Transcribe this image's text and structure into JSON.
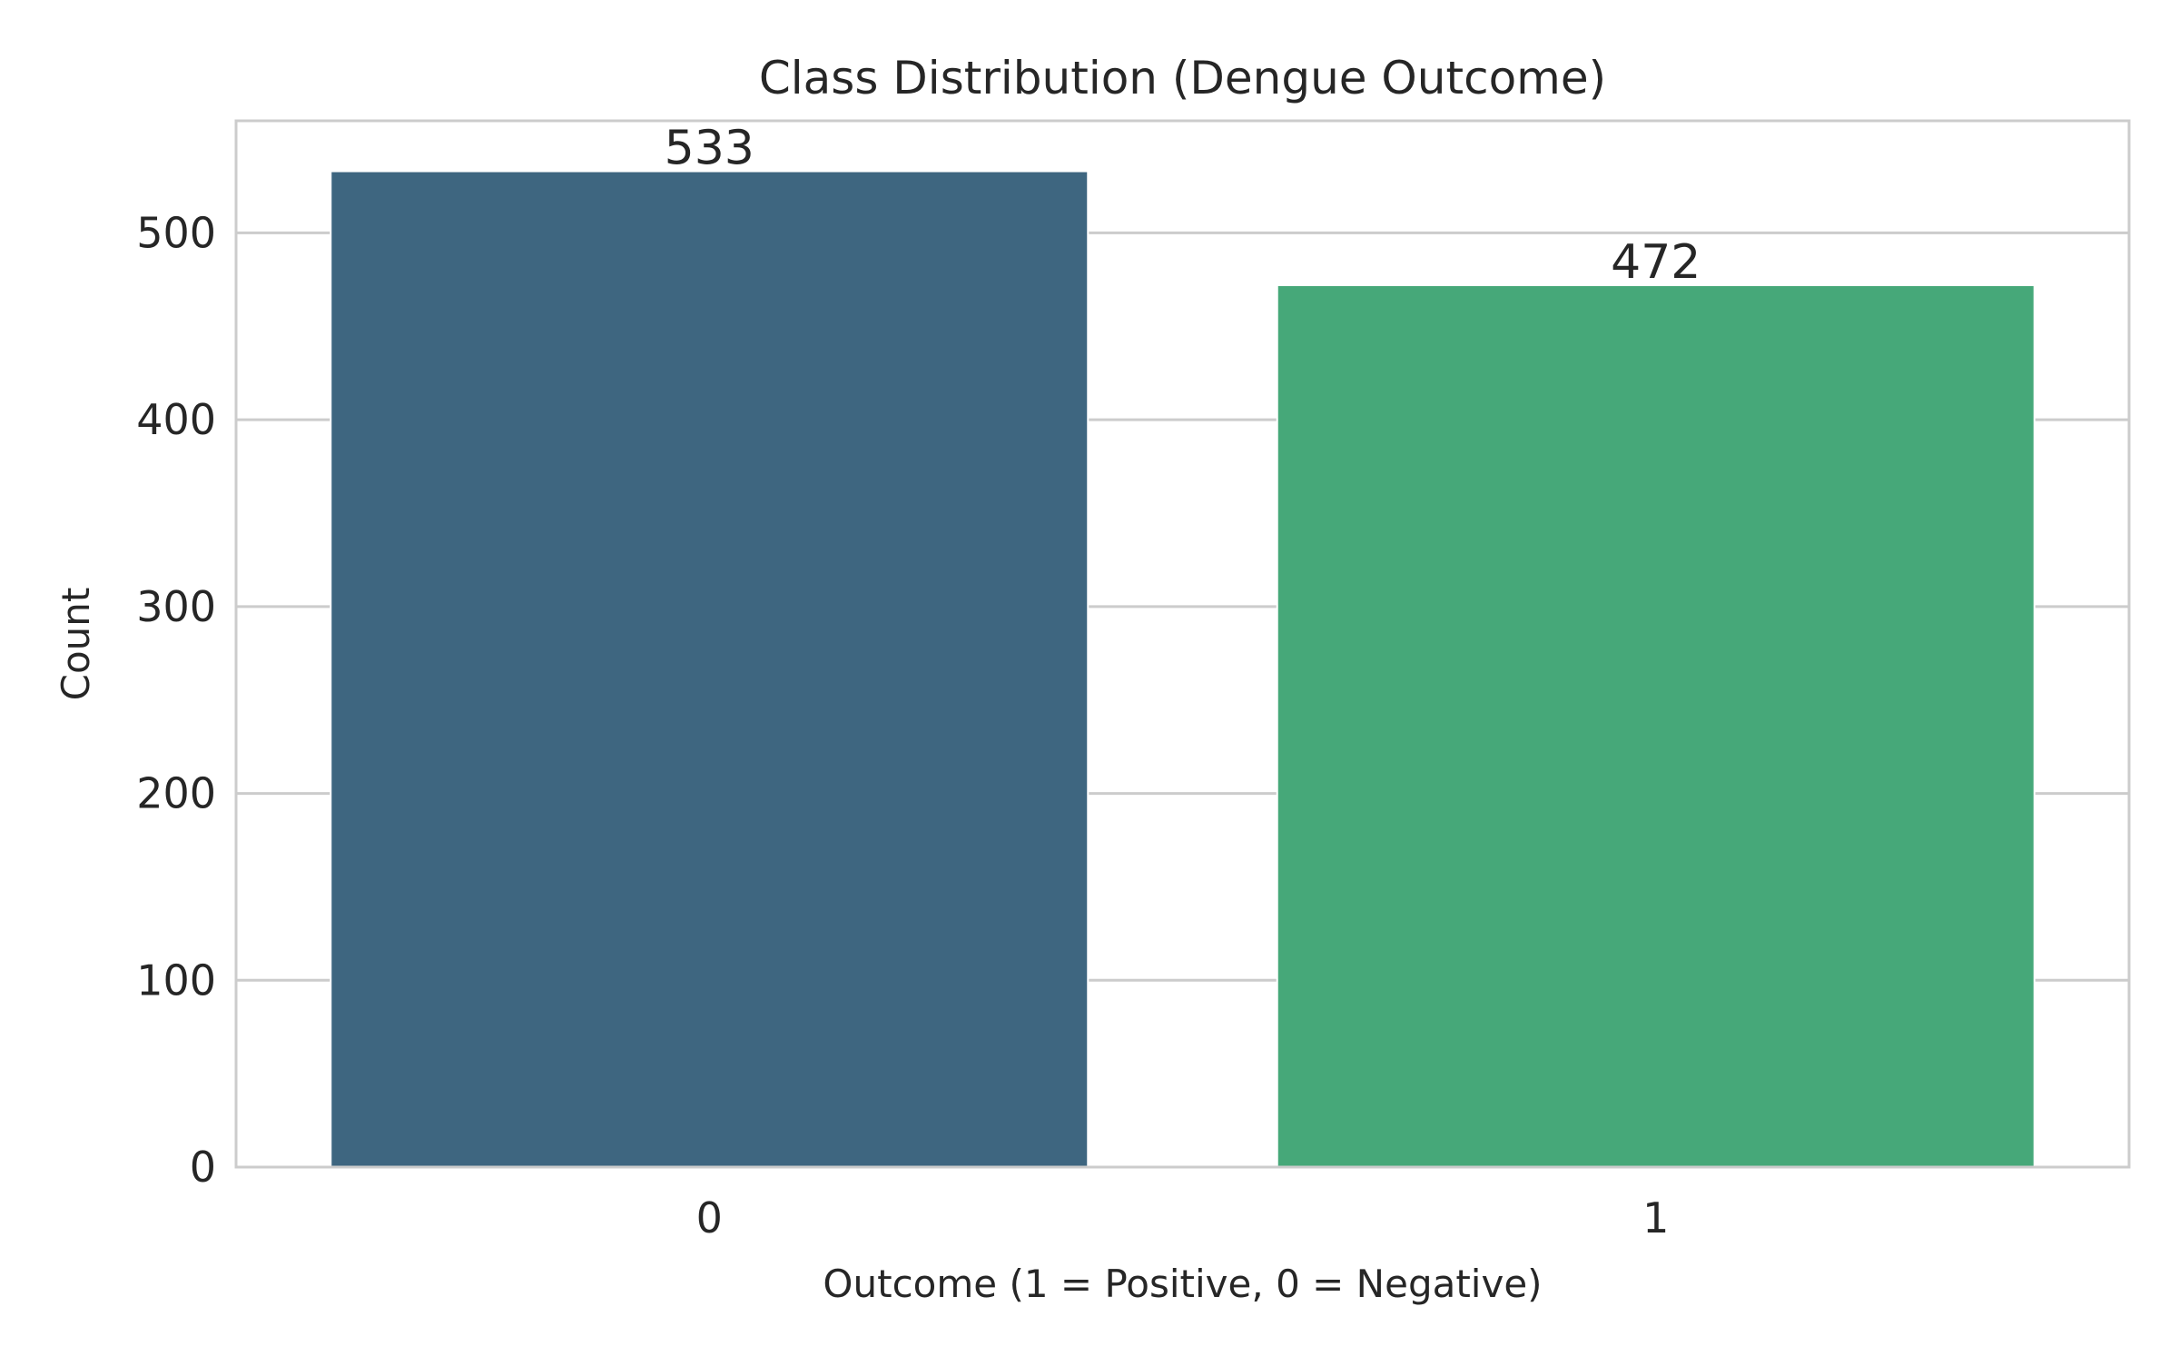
{
  "chart_data": {
    "type": "bar",
    "title": "Class Distribution (Dengue Outcome)",
    "xlabel": "Outcome (1 = Positive, 0 = Negative)",
    "ylabel": "Count",
    "categories": [
      "0",
      "1"
    ],
    "values": [
      533,
      472
    ],
    "data_labels": [
      "533",
      "472"
    ],
    "bar_colors": [
      "#3e6680",
      "#46a879"
    ],
    "ylim": [
      0,
      560
    ],
    "yticks": [
      0,
      100,
      200,
      300,
      400,
      500
    ],
    "ytick_labels": [
      "0",
      "100",
      "200",
      "300",
      "400",
      "500"
    ],
    "grid": "horizontal",
    "legend": "none"
  }
}
